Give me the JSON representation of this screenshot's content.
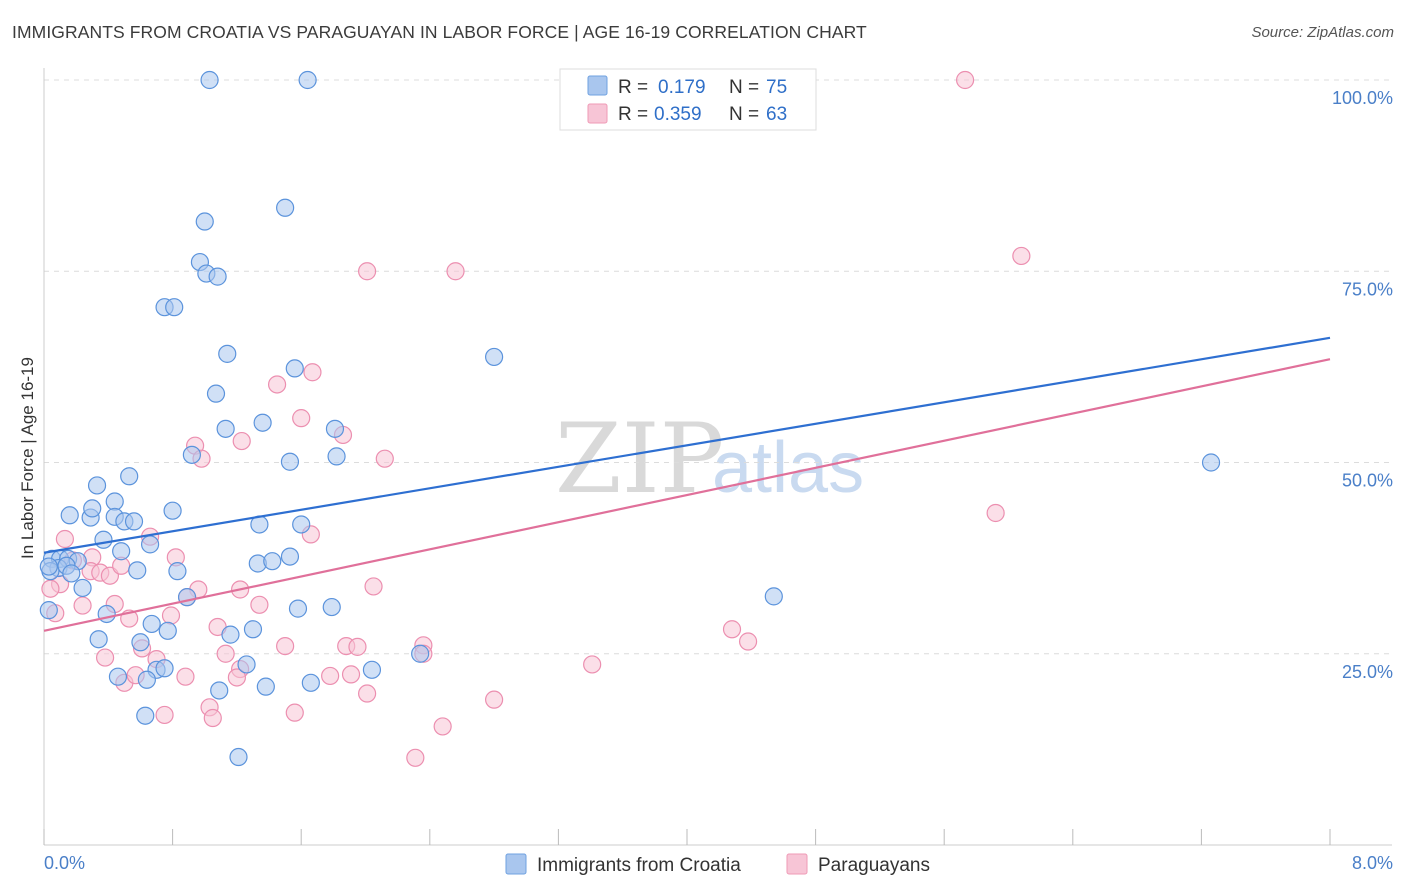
{
  "title": "IMMIGRANTS FROM CROATIA VS PARAGUAYAN IN LABOR FORCE | AGE 16-19 CORRELATION CHART",
  "source": "Source: ZipAtlas.com",
  "watermark": {
    "zip": "ZIP",
    "atlas": "atlas"
  },
  "legend": {
    "r_label": "R =",
    "n_label": "N =",
    "rows": [
      {
        "r": "0.179",
        "n": "75",
        "color": "#6fa1e0"
      },
      {
        "r": "0.359",
        "n": "63",
        "color": "#ef9ab6"
      }
    ]
  },
  "bottom_legend": [
    "Immigrants from Croatia",
    "Paraguayans"
  ],
  "chart_data": {
    "type": "scatter",
    "xlabel": "",
    "ylabel": "In Labor Force | Age 16-19",
    "xlim": [
      0.0,
      8.0
    ],
    "ylim": [
      0.0,
      100.0
    ],
    "x_tick_labels": [
      "0.0%",
      "8.0%"
    ],
    "y_ticks": [
      25,
      50,
      75,
      100
    ],
    "y_tick_labels": [
      "25.0%",
      "50.0%",
      "75.0%",
      "100.0%"
    ],
    "grid": true,
    "colors": {
      "croatia_stroke": "#5b93dc",
      "croatia_fill": "#a9c6ee",
      "paraguay_stroke": "#ec8fb0",
      "paraguay_fill": "#f7c5d6",
      "croatia_line": "#2e6fd1",
      "paraguay_line": "#e0709a"
    },
    "series": [
      {
        "name": "Immigrants from Croatia",
        "trend": {
          "x": [
            0.0,
            8.0
          ],
          "y": [
            38.2,
            66.3
          ]
        },
        "points": [
          [
            1.03,
            100
          ],
          [
            1.64,
            100
          ],
          [
            3.27,
            100
          ],
          [
            1.0,
            81.5
          ],
          [
            1.5,
            83.3
          ],
          [
            0.97,
            76.2
          ],
          [
            1.01,
            74.7
          ],
          [
            1.08,
            74.3
          ],
          [
            0.75,
            70.3
          ],
          [
            0.81,
            70.3
          ],
          [
            1.14,
            64.2
          ],
          [
            1.56,
            62.3
          ],
          [
            2.8,
            63.8
          ],
          [
            1.07,
            59.0
          ],
          [
            1.13,
            54.4
          ],
          [
            1.36,
            55.2
          ],
          [
            1.81,
            54.4
          ],
          [
            0.92,
            51.0
          ],
          [
            1.53,
            50.1
          ],
          [
            1.82,
            50.8
          ],
          [
            0.53,
            48.2
          ],
          [
            0.33,
            47.0
          ],
          [
            0.16,
            43.1
          ],
          [
            0.29,
            42.8
          ],
          [
            0.3,
            44.0
          ],
          [
            0.44,
            44.9
          ],
          [
            0.44,
            42.9
          ],
          [
            0.5,
            42.3
          ],
          [
            0.56,
            42.3
          ],
          [
            0.8,
            43.7
          ],
          [
            1.34,
            41.9
          ],
          [
            1.6,
            41.9
          ],
          [
            0.37,
            39.9
          ],
          [
            0.66,
            39.3
          ],
          [
            0.48,
            38.4
          ],
          [
            1.53,
            37.7
          ],
          [
            1.33,
            36.8
          ],
          [
            1.42,
            37.1
          ],
          [
            0.05,
            37.4
          ],
          [
            0.1,
            37.4
          ],
          [
            0.15,
            37.4
          ],
          [
            0.21,
            37.1
          ],
          [
            0.09,
            36.2
          ],
          [
            0.14,
            36.5
          ],
          [
            0.17,
            35.5
          ],
          [
            0.04,
            35.8
          ],
          [
            0.03,
            36.4
          ],
          [
            0.58,
            35.9
          ],
          [
            0.83,
            35.8
          ],
          [
            0.24,
            33.6
          ],
          [
            0.39,
            30.2
          ],
          [
            1.58,
            30.9
          ],
          [
            1.79,
            31.1
          ],
          [
            0.89,
            32.4
          ],
          [
            0.67,
            28.9
          ],
          [
            0.77,
            28.0
          ],
          [
            1.16,
            27.5
          ],
          [
            1.3,
            28.2
          ],
          [
            0.34,
            26.9
          ],
          [
            0.6,
            26.5
          ],
          [
            0.7,
            22.9
          ],
          [
            0.75,
            23.1
          ],
          [
            1.26,
            23.6
          ],
          [
            2.34,
            25.0
          ],
          [
            2.04,
            22.9
          ],
          [
            0.46,
            22.0
          ],
          [
            0.64,
            21.6
          ],
          [
            1.09,
            20.2
          ],
          [
            1.38,
            20.7
          ],
          [
            1.66,
            21.2
          ],
          [
            0.63,
            16.9
          ],
          [
            1.21,
            11.5
          ],
          [
            4.54,
            32.5
          ],
          [
            7.26,
            50.0
          ],
          [
            0.03,
            30.7
          ]
        ]
      },
      {
        "name": "Paraguayans",
        "trend": {
          "x": [
            0.0,
            8.0
          ],
          "y": [
            28.0,
            63.5
          ]
        },
        "points": [
          [
            5.73,
            100
          ],
          [
            6.08,
            77.0
          ],
          [
            2.01,
            75.0
          ],
          [
            2.56,
            75.0
          ],
          [
            1.67,
            61.8
          ],
          [
            1.45,
            60.2
          ],
          [
            1.6,
            55.8
          ],
          [
            1.86,
            53.6
          ],
          [
            0.94,
            52.2
          ],
          [
            1.23,
            52.8
          ],
          [
            0.98,
            50.5
          ],
          [
            2.12,
            50.5
          ],
          [
            5.92,
            43.4
          ],
          [
            0.13,
            40.0
          ],
          [
            0.66,
            40.3
          ],
          [
            1.66,
            40.6
          ],
          [
            0.18,
            37.2
          ],
          [
            0.3,
            37.6
          ],
          [
            0.82,
            37.6
          ],
          [
            0.1,
            34.1
          ],
          [
            0.04,
            33.5
          ],
          [
            0.29,
            35.8
          ],
          [
            0.35,
            35.6
          ],
          [
            0.41,
            35.2
          ],
          [
            0.48,
            36.5
          ],
          [
            0.96,
            33.4
          ],
          [
            1.22,
            33.4
          ],
          [
            2.05,
            33.8
          ],
          [
            0.24,
            31.3
          ],
          [
            0.44,
            31.5
          ],
          [
            1.34,
            31.4
          ],
          [
            0.89,
            32.4
          ],
          [
            0.79,
            30.0
          ],
          [
            0.53,
            29.6
          ],
          [
            1.08,
            28.5
          ],
          [
            4.28,
            28.2
          ],
          [
            1.5,
            26.0
          ],
          [
            1.88,
            26.0
          ],
          [
            1.95,
            25.9
          ],
          [
            2.36,
            26.1
          ],
          [
            4.38,
            26.6
          ],
          [
            0.61,
            25.7
          ],
          [
            1.13,
            25.0
          ],
          [
            2.36,
            25.0
          ],
          [
            0.38,
            24.5
          ],
          [
            0.7,
            24.3
          ],
          [
            3.41,
            23.6
          ],
          [
            1.22,
            23.0
          ],
          [
            1.91,
            22.3
          ],
          [
            0.88,
            22.0
          ],
          [
            1.78,
            22.1
          ],
          [
            1.2,
            21.9
          ],
          [
            0.5,
            21.2
          ],
          [
            0.57,
            22.2
          ],
          [
            2.01,
            19.8
          ],
          [
            2.8,
            19.0
          ],
          [
            1.03,
            18.0
          ],
          [
            1.56,
            17.3
          ],
          [
            0.75,
            17.0
          ],
          [
            1.05,
            16.6
          ],
          [
            2.48,
            15.5
          ],
          [
            2.31,
            11.4
          ],
          [
            0.07,
            30.3
          ]
        ]
      }
    ]
  }
}
